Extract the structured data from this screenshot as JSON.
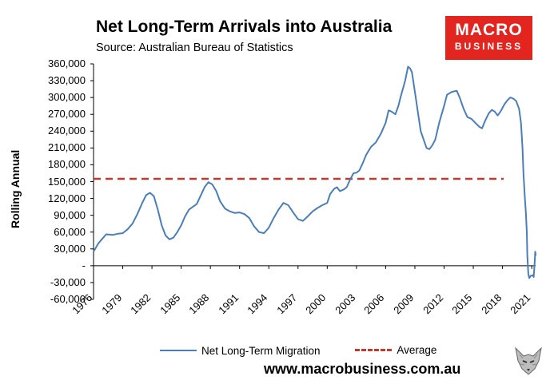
{
  "chart_data": {
    "type": "line",
    "title": "Net Long-Term Arrivals into Australia",
    "subtitle": "Source: Australian Bureau of Statistics",
    "ylabel": "Rolling Annual",
    "xlabel": "",
    "ylim": [
      -60000,
      360000
    ],
    "xlim": [
      1976,
      2021.4
    ],
    "y_ticks": [
      "360,000",
      "330,000",
      "300,000",
      "270,000",
      "240,000",
      "210,000",
      "180,000",
      "150,000",
      "120,000",
      "90,000",
      "60,000",
      "30,000",
      "-",
      "-30,000",
      "-60,000"
    ],
    "x_ticks": [
      "1976",
      "1979",
      "1982",
      "1985",
      "1988",
      "1991",
      "1994",
      "1997",
      "2000",
      "2003",
      "2006",
      "2009",
      "2012",
      "2015",
      "2018",
      "2021"
    ],
    "grid": false,
    "legend_position": "bottom",
    "series": [
      {
        "name": "Net Long-Term Migration",
        "color": "#4a7ebb",
        "points": [
          [
            1976.0,
            25000
          ],
          [
            1976.5,
            40000
          ],
          [
            1977.0,
            50000
          ],
          [
            1977.3,
            56000
          ],
          [
            1978.0,
            55000
          ],
          [
            1978.5,
            57000
          ],
          [
            1979.0,
            58000
          ],
          [
            1979.5,
            65000
          ],
          [
            1980.0,
            75000
          ],
          [
            1980.5,
            92000
          ],
          [
            1981.0,
            112000
          ],
          [
            1981.4,
            126000
          ],
          [
            1981.8,
            130000
          ],
          [
            1982.2,
            124000
          ],
          [
            1982.6,
            100000
          ],
          [
            1983.0,
            72000
          ],
          [
            1983.4,
            54000
          ],
          [
            1983.8,
            47000
          ],
          [
            1984.2,
            50000
          ],
          [
            1984.6,
            60000
          ],
          [
            1985.0,
            72000
          ],
          [
            1985.4,
            88000
          ],
          [
            1985.8,
            100000
          ],
          [
            1986.2,
            105000
          ],
          [
            1986.6,
            110000
          ],
          [
            1987.0,
            125000
          ],
          [
            1987.4,
            140000
          ],
          [
            1987.8,
            149000
          ],
          [
            1988.2,
            145000
          ],
          [
            1988.6,
            133000
          ],
          [
            1989.0,
            115000
          ],
          [
            1989.5,
            102000
          ],
          [
            1990.0,
            97000
          ],
          [
            1990.5,
            94000
          ],
          [
            1991.0,
            95000
          ],
          [
            1991.5,
            92000
          ],
          [
            1992.0,
            85000
          ],
          [
            1992.5,
            70000
          ],
          [
            1993.0,
            60000
          ],
          [
            1993.5,
            58000
          ],
          [
            1994.0,
            68000
          ],
          [
            1994.5,
            85000
          ],
          [
            1995.0,
            100000
          ],
          [
            1995.5,
            112000
          ],
          [
            1996.0,
            108000
          ],
          [
            1996.5,
            95000
          ],
          [
            1997.0,
            83000
          ],
          [
            1997.5,
            80000
          ],
          [
            1998.0,
            88000
          ],
          [
            1998.5,
            97000
          ],
          [
            1999.0,
            103000
          ],
          [
            1999.5,
            108000
          ],
          [
            2000.0,
            112000
          ],
          [
            2000.3,
            128000
          ],
          [
            2000.7,
            137000
          ],
          [
            2001.0,
            140000
          ],
          [
            2001.3,
            133000
          ],
          [
            2001.7,
            136000
          ],
          [
            2002.0,
            140000
          ],
          [
            2002.3,
            152000
          ],
          [
            2002.7,
            165000
          ],
          [
            2003.0,
            166000
          ],
          [
            2003.3,
            170000
          ],
          [
            2003.7,
            185000
          ],
          [
            2004.0,
            198000
          ],
          [
            2004.5,
            212000
          ],
          [
            2005.0,
            220000
          ],
          [
            2005.5,
            235000
          ],
          [
            2006.0,
            255000
          ],
          [
            2006.3,
            277000
          ],
          [
            2006.6,
            275000
          ],
          [
            2007.0,
            270000
          ],
          [
            2007.3,
            285000
          ],
          [
            2007.6,
            305000
          ],
          [
            2008.0,
            330000
          ],
          [
            2008.3,
            355000
          ],
          [
            2008.5,
            352000
          ],
          [
            2008.7,
            345000
          ],
          [
            2009.0,
            310000
          ],
          [
            2009.3,
            275000
          ],
          [
            2009.6,
            240000
          ],
          [
            2009.9,
            225000
          ],
          [
            2010.2,
            210000
          ],
          [
            2010.5,
            208000
          ],
          [
            2010.8,
            215000
          ],
          [
            2011.1,
            225000
          ],
          [
            2011.5,
            255000
          ],
          [
            2012.0,
            285000
          ],
          [
            2012.3,
            305000
          ],
          [
            2012.8,
            310000
          ],
          [
            2013.3,
            312000
          ],
          [
            2013.6,
            300000
          ],
          [
            2014.0,
            280000
          ],
          [
            2014.4,
            265000
          ],
          [
            2014.8,
            262000
          ],
          [
            2015.2,
            255000
          ],
          [
            2015.6,
            248000
          ],
          [
            2015.9,
            245000
          ],
          [
            2016.2,
            258000
          ],
          [
            2016.6,
            272000
          ],
          [
            2016.9,
            278000
          ],
          [
            2017.2,
            275000
          ],
          [
            2017.5,
            268000
          ],
          [
            2017.8,
            275000
          ],
          [
            2018.2,
            288000
          ],
          [
            2018.5,
            295000
          ],
          [
            2018.8,
            300000
          ],
          [
            2019.1,
            298000
          ],
          [
            2019.4,
            294000
          ],
          [
            2019.7,
            280000
          ],
          [
            2019.9,
            255000
          ],
          [
            2020.05,
            210000
          ],
          [
            2020.15,
            165000
          ],
          [
            2020.3,
            120000
          ],
          [
            2020.4,
            95000
          ],
          [
            2020.5,
            60000
          ],
          [
            2020.55,
            20000
          ],
          [
            2020.65,
            -15000
          ],
          [
            2020.75,
            -22000
          ],
          [
            2020.9,
            -18000
          ],
          [
            2021.1,
            -17000
          ],
          [
            2021.2,
            -20000
          ],
          [
            2021.3,
            5000
          ],
          [
            2021.36,
            25000
          ],
          [
            2021.42,
            18000
          ]
        ]
      },
      {
        "name": "Average",
        "color": "#c0392b",
        "dashed": true,
        "value": 155000
      }
    ]
  },
  "branding": {
    "logo_line1": "MACRO",
    "logo_line2": "BUSINESS",
    "url": "www.macrobusiness.com.au"
  }
}
